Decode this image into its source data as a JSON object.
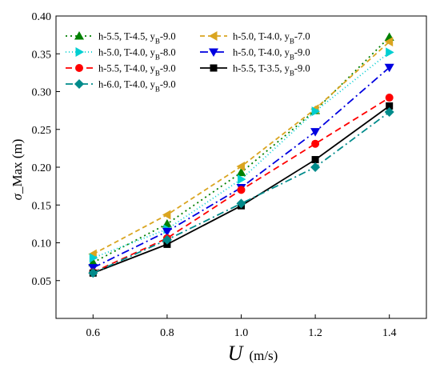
{
  "chart_data": {
    "type": "line",
    "title": "",
    "xlabel": {
      "symbol": "U",
      "unit": "(m/s)"
    },
    "ylabel": {
      "symbol": "σ",
      "rest": "_Max (m)"
    },
    "xlim": [
      0.5,
      1.5
    ],
    "ylim": [
      0.0,
      0.4
    ],
    "x_ticks": [
      "0.6",
      "0.8",
      "1.0",
      "1.2",
      "1.4"
    ],
    "y_ticks": [
      "0.05",
      "0.10",
      "0.15",
      "0.20",
      "0.25",
      "0.30",
      "0.35",
      "0.40"
    ],
    "grid": false,
    "legend_position": "top-left",
    "x": [
      0.6,
      0.8,
      1.0,
      1.2,
      1.4
    ],
    "series": [
      {
        "name": "h-5.5, T-4.5, yB-9.0",
        "label": {
          "main": "h-5.5, T-4.5, y",
          "sub": "B",
          "tail": "-9.0"
        },
        "values": [
          0.074,
          0.125,
          0.193,
          0.275,
          0.372
        ],
        "color": "#008000",
        "dash": "2,4",
        "marker": "triangle-up"
      },
      {
        "name": "h-5.0, T-4.0, yB-7.0",
        "label": {
          "main": "h-5.0, T-4.0, y",
          "sub": "B",
          "tail": "-7.0"
        },
        "values": [
          0.085,
          0.137,
          0.201,
          0.277,
          0.366
        ],
        "color": "#DAA520",
        "dash": "6,4",
        "marker": "triangle-left"
      },
      {
        "name": "h-5.0, T-4.0, yB-8.0",
        "label": {
          "main": "h-5.0, T-4.0, y",
          "sub": "B",
          "tail": "-8.0"
        },
        "values": [
          0.08,
          0.118,
          0.184,
          0.274,
          0.352
        ],
        "color": "#00CED1",
        "dash": "1,3",
        "marker": "triangle-right"
      },
      {
        "name": "h-5.0, T-4.0, yB-9.0",
        "label": {
          "main": "h-5.0, T-4.0, y",
          "sub": "B",
          "tail": "-9.0"
        },
        "values": [
          0.067,
          0.115,
          0.173,
          0.247,
          0.332
        ],
        "color": "#0000E0",
        "dash": "10,4,2,4",
        "marker": "triangle-down"
      },
      {
        "name": "h-5.5, T-4.0, yB-9.0",
        "label": {
          "main": "h-5.5, T-4.0, y",
          "sub": "B",
          "tail": "-9.0"
        },
        "values": [
          0.061,
          0.106,
          0.17,
          0.231,
          0.292
        ],
        "color": "#FF0000",
        "dash": "8,5",
        "marker": "circle"
      },
      {
        "name": "h-5.5, T-3.5, yB-9.0",
        "label": {
          "main": "h-5.5, T-3.5, y",
          "sub": "B",
          "tail": "-9.0"
        },
        "values": [
          0.06,
          0.098,
          0.149,
          0.21,
          0.281
        ],
        "color": "#000000",
        "dash": "",
        "marker": "square"
      },
      {
        "name": "h-6.0, T-4.0, yB-9.0",
        "label": {
          "main": "h-6.0, T-4.0, y",
          "sub": "B",
          "tail": "-9.0"
        },
        "values": [
          0.06,
          0.104,
          0.152,
          0.2,
          0.273
        ],
        "color": "#008B8B",
        "dash": "9,4,2,4",
        "marker": "diamond"
      }
    ]
  }
}
